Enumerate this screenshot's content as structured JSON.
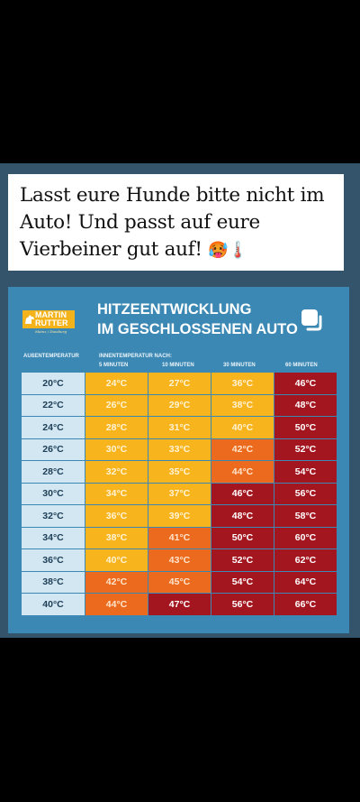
{
  "caption": {
    "line1": "Lasst eure Hunde bitte nicht im",
    "line2": "Auto! Und passt auf eure",
    "line3": "Vierbeiner gut auf!",
    "emoji": "🥵🌡️"
  },
  "logo": {
    "line1": "MARTIN",
    "line2": "RUTTER",
    "sub": "Mainz / Duisburg"
  },
  "title": {
    "line1": "HITZEENTWICKLUNG",
    "line2": "IM GESCHLOSSENEN AUTO"
  },
  "headers": {
    "outside": "AUßENTEMPERATUR",
    "inside": "INNENTEMPERATUR NACH:",
    "columns": [
      "5 MINUTEN",
      "10 MINUTEN",
      "30 MINUTEN",
      "60 MINUTEN"
    ]
  },
  "colors": {
    "outside": "#d2e7f2",
    "yellow": "#f8b41c",
    "orange": "#ec6a1d",
    "red": "#a3161f"
  },
  "table": {
    "rows": [
      {
        "outside": "20°C",
        "cells": [
          [
            "24°C",
            "yellow"
          ],
          [
            "27°C",
            "yellow"
          ],
          [
            "36°C",
            "yellow"
          ],
          [
            "46°C",
            "red"
          ]
        ]
      },
      {
        "outside": "22°C",
        "cells": [
          [
            "26°C",
            "yellow"
          ],
          [
            "29°C",
            "yellow"
          ],
          [
            "38°C",
            "yellow"
          ],
          [
            "48°C",
            "red"
          ]
        ]
      },
      {
        "outside": "24°C",
        "cells": [
          [
            "28°C",
            "yellow"
          ],
          [
            "31°C",
            "yellow"
          ],
          [
            "40°C",
            "yellow"
          ],
          [
            "50°C",
            "red"
          ]
        ]
      },
      {
        "outside": "26°C",
        "cells": [
          [
            "30°C",
            "yellow"
          ],
          [
            "33°C",
            "yellow"
          ],
          [
            "42°C",
            "orange"
          ],
          [
            "52°C",
            "red"
          ]
        ]
      },
      {
        "outside": "28°C",
        "cells": [
          [
            "32°C",
            "yellow"
          ],
          [
            "35°C",
            "yellow"
          ],
          [
            "44°C",
            "orange"
          ],
          [
            "54°C",
            "red"
          ]
        ]
      },
      {
        "outside": "30°C",
        "cells": [
          [
            "34°C",
            "yellow"
          ],
          [
            "37°C",
            "yellow"
          ],
          [
            "46°C",
            "red"
          ],
          [
            "56°C",
            "red"
          ]
        ]
      },
      {
        "outside": "32°C",
        "cells": [
          [
            "36°C",
            "yellow"
          ],
          [
            "39°C",
            "yellow"
          ],
          [
            "48°C",
            "red"
          ],
          [
            "58°C",
            "red"
          ]
        ]
      },
      {
        "outside": "34°C",
        "cells": [
          [
            "38°C",
            "yellow"
          ],
          [
            "41°C",
            "orange"
          ],
          [
            "50°C",
            "red"
          ],
          [
            "60°C",
            "red"
          ]
        ]
      },
      {
        "outside": "36°C",
        "cells": [
          [
            "40°C",
            "yellow"
          ],
          [
            "43°C",
            "orange"
          ],
          [
            "52°C",
            "red"
          ],
          [
            "62°C",
            "red"
          ]
        ]
      },
      {
        "outside": "38°C",
        "cells": [
          [
            "42°C",
            "orange"
          ],
          [
            "45°C",
            "orange"
          ],
          [
            "54°C",
            "red"
          ],
          [
            "64°C",
            "red"
          ]
        ]
      },
      {
        "outside": "40°C",
        "cells": [
          [
            "44°C",
            "orange"
          ],
          [
            "47°C",
            "red"
          ],
          [
            "56°C",
            "red"
          ],
          [
            "66°C",
            "red"
          ]
        ]
      }
    ]
  }
}
